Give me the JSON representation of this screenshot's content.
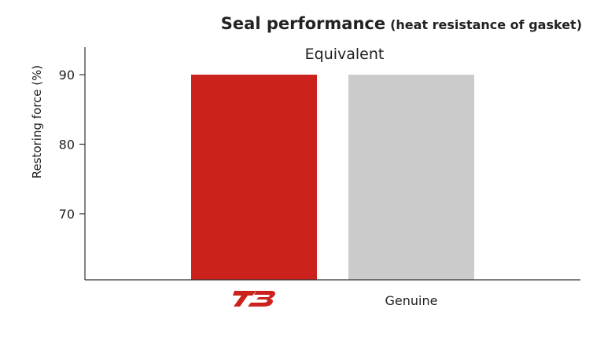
{
  "title": {
    "main": "Seal performance",
    "sub": "(heat resistance of gasket)"
  },
  "chart_data": {
    "type": "bar",
    "categories": [
      "",
      "Genuine"
    ],
    "category_logo": [
      "tb-logo",
      ""
    ],
    "values": [
      90,
      90
    ],
    "colors": [
      "#cc221e",
      "#cbcbcb"
    ],
    "ylabel": "Restoring force (%)",
    "xlabel": "",
    "yticks": [
      70,
      80,
      90
    ],
    "ylim": [
      60.5,
      93.5
    ],
    "grid": false,
    "annotation": "Equivalent"
  },
  "logo": {
    "name": "tb-logo",
    "color": "#cc221e"
  }
}
